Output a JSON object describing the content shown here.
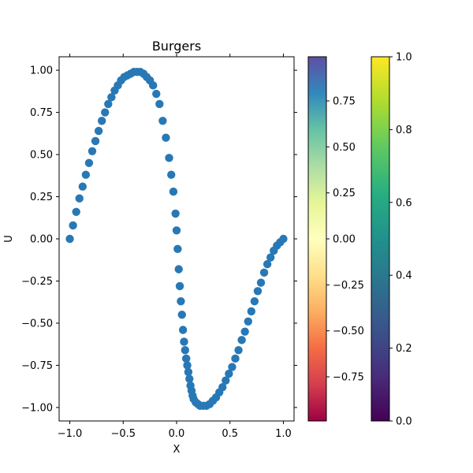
{
  "chart_data": {
    "type": "scatter",
    "title": "Burgers",
    "xlabel": "X",
    "ylabel": "U",
    "xlim": [
      -1.1,
      1.1
    ],
    "ylim": [
      -1.08,
      1.08
    ],
    "x_ticks": [
      "−1.0",
      "−0.5",
      "0.0",
      "0.5",
      "1.0"
    ],
    "x_tick_values": [
      -1.0,
      -0.5,
      0.0,
      0.5,
      1.0
    ],
    "y_ticks": [
      "−1.00",
      "−0.75",
      "−0.50",
      "−0.25",
      "0.00",
      "0.25",
      "0.50",
      "0.75",
      "1.00"
    ],
    "y_tick_values": [
      -1.0,
      -0.75,
      -0.5,
      -0.25,
      0.0,
      0.25,
      0.5,
      0.75,
      1.0
    ],
    "marker_color": "#2878b5",
    "points": [
      [
        -1.0,
        0.0
      ],
      [
        -0.97,
        0.08
      ],
      [
        -0.94,
        0.16
      ],
      [
        -0.91,
        0.24
      ],
      [
        -0.88,
        0.31
      ],
      [
        -0.85,
        0.38
      ],
      [
        -0.82,
        0.45
      ],
      [
        -0.79,
        0.52
      ],
      [
        -0.76,
        0.58
      ],
      [
        -0.73,
        0.64
      ],
      [
        -0.7,
        0.7
      ],
      [
        -0.67,
        0.75
      ],
      [
        -0.64,
        0.8
      ],
      [
        -0.61,
        0.84
      ],
      [
        -0.58,
        0.88
      ],
      [
        -0.55,
        0.91
      ],
      [
        -0.52,
        0.94
      ],
      [
        -0.49,
        0.96
      ],
      [
        -0.46,
        0.97
      ],
      [
        -0.43,
        0.98
      ],
      [
        -0.4,
        0.99
      ],
      [
        -0.37,
        0.99
      ],
      [
        -0.34,
        0.99
      ],
      [
        -0.31,
        0.98
      ],
      [
        -0.28,
        0.96
      ],
      [
        -0.25,
        0.94
      ],
      [
        -0.22,
        0.91
      ],
      [
        -0.19,
        0.86
      ],
      [
        -0.16,
        0.8
      ],
      [
        -0.13,
        0.7
      ],
      [
        -0.1,
        0.6
      ],
      [
        -0.07,
        0.48
      ],
      [
        -0.05,
        0.38
      ],
      [
        -0.03,
        0.28
      ],
      [
        -0.01,
        0.15
      ],
      [
        0.0,
        0.05
      ],
      [
        0.01,
        -0.06
      ],
      [
        0.02,
        -0.18
      ],
      [
        0.03,
        -0.28
      ],
      [
        0.04,
        -0.37
      ],
      [
        0.05,
        -0.45
      ],
      [
        0.06,
        -0.54
      ],
      [
        0.07,
        -0.61
      ],
      [
        0.08,
        -0.66
      ],
      [
        0.09,
        -0.71
      ],
      [
        0.1,
        -0.75
      ],
      [
        0.11,
        -0.79
      ],
      [
        0.12,
        -0.83
      ],
      [
        0.13,
        -0.87
      ],
      [
        0.14,
        -0.9
      ],
      [
        0.15,
        -0.93
      ],
      [
        0.16,
        -0.95
      ],
      [
        0.18,
        -0.97
      ],
      [
        0.2,
        -0.98
      ],
      [
        0.22,
        -0.99
      ],
      [
        0.25,
        -0.99
      ],
      [
        0.28,
        -0.99
      ],
      [
        0.31,
        -0.98
      ],
      [
        0.34,
        -0.96
      ],
      [
        0.37,
        -0.94
      ],
      [
        0.4,
        -0.91
      ],
      [
        0.43,
        -0.88
      ],
      [
        0.46,
        -0.84
      ],
      [
        0.49,
        -0.8
      ],
      [
        0.52,
        -0.76
      ],
      [
        0.55,
        -0.71
      ],
      [
        0.58,
        -0.66
      ],
      [
        0.61,
        -0.6
      ],
      [
        0.64,
        -0.55
      ],
      [
        0.67,
        -0.49
      ],
      [
        0.7,
        -0.43
      ],
      [
        0.73,
        -0.37
      ],
      [
        0.76,
        -0.31
      ],
      [
        0.79,
        -0.26
      ],
      [
        0.82,
        -0.2
      ],
      [
        0.85,
        -0.15
      ],
      [
        0.88,
        -0.11
      ],
      [
        0.91,
        -0.07
      ],
      [
        0.94,
        -0.04
      ],
      [
        0.97,
        -0.02
      ],
      [
        1.0,
        0.0
      ]
    ],
    "colorbar_spectral": {
      "ticks": [
        "0.75",
        "0.50",
        "0.25",
        "0.00",
        "−0.25",
        "−0.50",
        "−0.75"
      ],
      "tick_values": [
        0.75,
        0.5,
        0.25,
        0.0,
        -0.25,
        -0.5,
        -0.75
      ],
      "range": [
        -0.99,
        0.99
      ]
    },
    "colorbar_viridis": {
      "ticks": [
        "1.0",
        "0.8",
        "0.6",
        "0.4",
        "0.2",
        "0.0"
      ],
      "tick_values": [
        1.0,
        0.8,
        0.6,
        0.4,
        0.2,
        0.0
      ],
      "range": [
        0.0,
        1.0
      ]
    }
  }
}
